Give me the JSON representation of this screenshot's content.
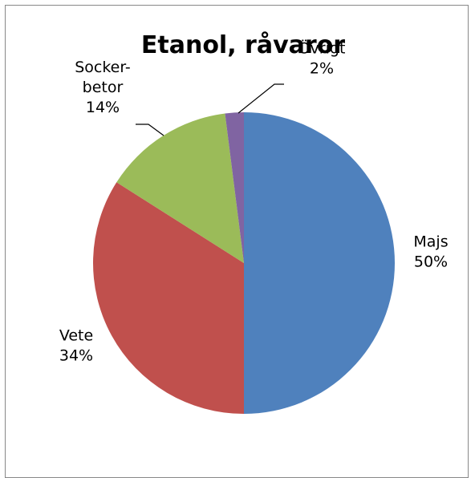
{
  "chart_data": {
    "type": "pie",
    "title": "Etanol, råvaror",
    "slices": [
      {
        "name": "Majs",
        "label_lines": [
          "Majs",
          "50%"
        ],
        "value": 50,
        "percent_label": "50%",
        "color": "#4F81BD"
      },
      {
        "name": "Vete",
        "label_lines": [
          "Vete",
          "34%"
        ],
        "value": 34,
        "percent_label": "34%",
        "color": "#C0504D"
      },
      {
        "name": "Sockerbetor",
        "label_lines": [
          "Socker-",
          "betor",
          "14%"
        ],
        "value": 14,
        "percent_label": "14%",
        "color": "#9BBB59"
      },
      {
        "name": "Övrigt",
        "label_lines": [
          "Övrigt",
          "2%"
        ],
        "value": 2,
        "percent_label": "2%",
        "color": "#8064A2"
      }
    ],
    "start_direction": "top",
    "direction": "clockwise",
    "legend": "none",
    "grid": false
  }
}
